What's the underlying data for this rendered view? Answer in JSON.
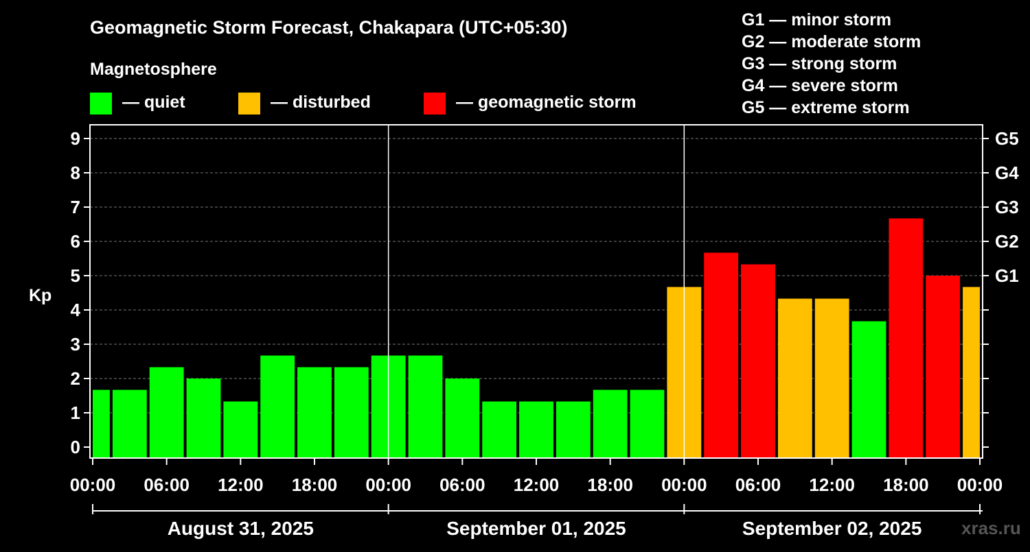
{
  "chart_data": {
    "type": "bar",
    "title": "Geomagnetic Storm Forecast, Chakapara (UTC+05:30)",
    "legend": {
      "title": "Magnetosphere",
      "items": [
        {
          "key": "quiet",
          "label": "— quiet",
          "color": "#00ff00"
        },
        {
          "key": "disturbed",
          "label": "— disturbed",
          "color": "#ffc000"
        },
        {
          "key": "storm",
          "label": "— geomagnetic storm",
          "color": "#ff0000"
        }
      ]
    },
    "storm_scale": [
      "G1 — minor storm",
      "G2 — moderate storm",
      "G3 — strong storm",
      "G4 — severe storm",
      "G5 — extreme storm"
    ],
    "ylabel": "Kp",
    "ylim": [
      0,
      9
    ],
    "y_ticks": [
      0,
      1,
      2,
      3,
      4,
      5,
      6,
      7,
      8,
      9
    ],
    "right_axis": [
      {
        "kp": 5,
        "label": "G1"
      },
      {
        "kp": 6,
        "label": "G2"
      },
      {
        "kp": 7,
        "label": "G3"
      },
      {
        "kp": 8,
        "label": "G4"
      },
      {
        "kp": 9,
        "label": "G5"
      }
    ],
    "x_tick_labels": [
      "00:00",
      "06:00",
      "12:00",
      "18:00",
      "00:00",
      "06:00",
      "12:00",
      "18:00",
      "00:00",
      "06:00",
      "12:00",
      "18:00",
      "00:00"
    ],
    "dates": [
      "August 31, 2025",
      "September 01, 2025",
      "September 02, 2025"
    ],
    "time_range_hours": [
      0,
      72
    ],
    "bars": [
      {
        "start": 0,
        "end": 1.5,
        "kp": 1.67,
        "level": "quiet"
      },
      {
        "start": 1.5,
        "end": 4.5,
        "kp": 1.67,
        "level": "quiet"
      },
      {
        "start": 4.5,
        "end": 7.5,
        "kp": 2.33,
        "level": "quiet"
      },
      {
        "start": 7.5,
        "end": 10.5,
        "kp": 2.0,
        "level": "quiet"
      },
      {
        "start": 10.5,
        "end": 13.5,
        "kp": 1.33,
        "level": "quiet"
      },
      {
        "start": 13.5,
        "end": 16.5,
        "kp": 2.67,
        "level": "quiet"
      },
      {
        "start": 16.5,
        "end": 19.5,
        "kp": 2.33,
        "level": "quiet"
      },
      {
        "start": 19.5,
        "end": 22.5,
        "kp": 2.33,
        "level": "quiet"
      },
      {
        "start": 22.5,
        "end": 25.5,
        "kp": 2.67,
        "level": "quiet"
      },
      {
        "start": 25.5,
        "end": 28.5,
        "kp": 2.67,
        "level": "quiet"
      },
      {
        "start": 28.5,
        "end": 31.5,
        "kp": 2.0,
        "level": "quiet"
      },
      {
        "start": 31.5,
        "end": 34.5,
        "kp": 1.33,
        "level": "quiet"
      },
      {
        "start": 34.5,
        "end": 37.5,
        "kp": 1.33,
        "level": "quiet"
      },
      {
        "start": 37.5,
        "end": 40.5,
        "kp": 1.33,
        "level": "quiet"
      },
      {
        "start": 40.5,
        "end": 43.5,
        "kp": 1.67,
        "level": "quiet"
      },
      {
        "start": 43.5,
        "end": 46.5,
        "kp": 1.67,
        "level": "quiet"
      },
      {
        "start": 46.5,
        "end": 49.5,
        "kp": 4.67,
        "level": "disturbed"
      },
      {
        "start": 49.5,
        "end": 52.5,
        "kp": 5.67,
        "level": "storm"
      },
      {
        "start": 52.5,
        "end": 55.5,
        "kp": 5.33,
        "level": "storm"
      },
      {
        "start": 55.5,
        "end": 58.5,
        "kp": 4.33,
        "level": "disturbed"
      },
      {
        "start": 58.5,
        "end": 61.5,
        "kp": 4.33,
        "level": "disturbed"
      },
      {
        "start": 61.5,
        "end": 64.5,
        "kp": 3.67,
        "level": "quiet"
      },
      {
        "start": 64.5,
        "end": 67.5,
        "kp": 6.67,
        "level": "storm"
      },
      {
        "start": 67.5,
        "end": 70.5,
        "kp": 5.0,
        "level": "storm"
      },
      {
        "start": 70.5,
        "end": 72,
        "kp": 4.67,
        "level": "disturbed"
      }
    ],
    "grid": true
  },
  "watermark": "xras.ru"
}
